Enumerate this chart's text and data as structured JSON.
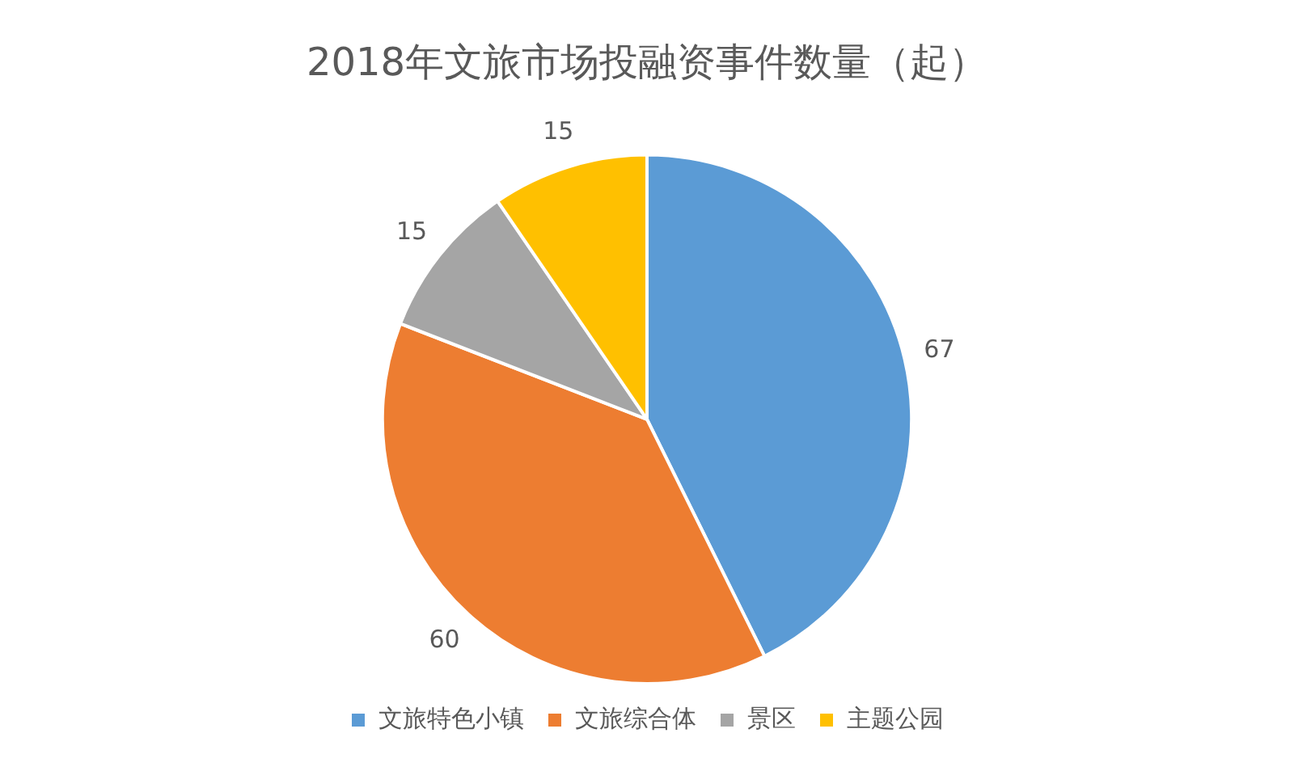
{
  "chart_data": {
    "type": "pie",
    "title": "2018年文旅市场投融资事件数量（起）",
    "categories": [
      "文旅特色小镇",
      "文旅综合体",
      "景区",
      "主题公园"
    ],
    "values": [
      67,
      60,
      15,
      15
    ],
    "colors": [
      "#5b9bd5",
      "#ed7d31",
      "#a5a5a5",
      "#ffc000"
    ],
    "data_labels": true,
    "legend": "bottom"
  }
}
